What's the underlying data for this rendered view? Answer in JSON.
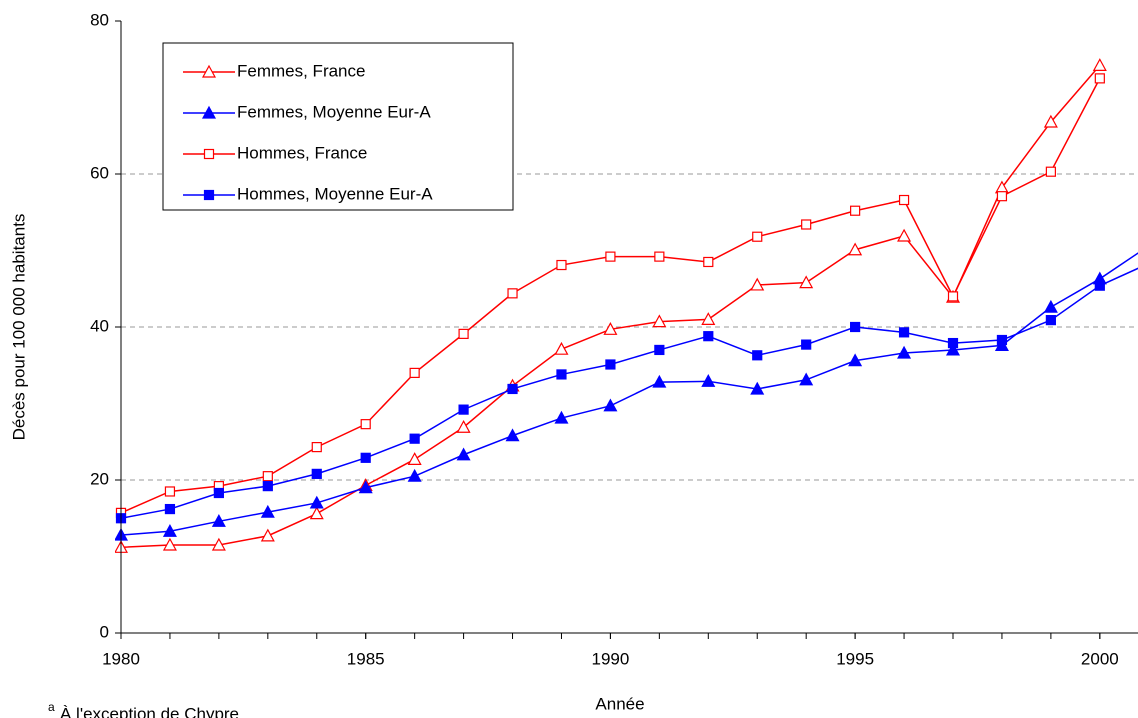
{
  "chart_data": {
    "type": "line",
    "x_label": "Année",
    "y_label": "Décès pour 100 000 habitants",
    "footnote_marker": "a",
    "footnote": "À l'exception de Chypre",
    "x": [
      1980,
      1981,
      1982,
      1983,
      1984,
      1985,
      1986,
      1987,
      1988,
      1989,
      1990,
      1991,
      1992,
      1993,
      1994,
      1995,
      1996,
      1997,
      1998,
      1999,
      2000,
      2001
    ],
    "xlim": [
      1980,
      2000.78
    ],
    "xticks": [
      1980,
      1985,
      1990,
      1995,
      2000
    ],
    "ylim": [
      0,
      80
    ],
    "yticks": [
      0,
      20,
      40,
      60,
      80
    ],
    "grid": true,
    "legend": "upper left",
    "series": [
      {
        "name": "Femmes, France",
        "color": "#ff0000",
        "marker": "triangle-open",
        "values": [
          11.2,
          11.5,
          11.5,
          12.7,
          15.6,
          19.3,
          22.7,
          26.9,
          32.3,
          37.1,
          39.7,
          40.7,
          41.0,
          45.5,
          45.8,
          50.1,
          51.9,
          43.9,
          58.2,
          66.8,
          74.2,
          null
        ]
      },
      {
        "name": "Femmes, Moyenne Eur-A",
        "color": "#0000ff",
        "marker": "triangle-filled",
        "values": [
          12.8,
          13.3,
          14.6,
          15.8,
          17.0,
          19.0,
          20.5,
          23.3,
          25.8,
          28.1,
          29.7,
          32.8,
          32.9,
          31.9,
          33.1,
          35.6,
          36.6,
          37.0,
          37.6,
          42.6,
          46.3,
          50.6
        ]
      },
      {
        "name": "Hommes, France",
        "color": "#ff0000",
        "marker": "square-open",
        "values": [
          15.7,
          18.5,
          19.2,
          20.5,
          24.3,
          27.3,
          34.0,
          39.1,
          44.4,
          48.1,
          49.2,
          49.2,
          48.5,
          51.8,
          53.4,
          55.2,
          56.6,
          44.0,
          57.1,
          60.3,
          72.5,
          null
        ]
      },
      {
        "name": "Hommes, Moyenne Eur-A",
        "color": "#0000ff",
        "marker": "square-filled",
        "values": [
          15.0,
          16.2,
          18.3,
          19.2,
          20.8,
          22.9,
          25.4,
          29.2,
          31.9,
          33.8,
          35.1,
          37.0,
          38.8,
          36.3,
          37.7,
          40.0,
          39.3,
          37.9,
          38.3,
          40.9,
          45.4,
          48.3
        ]
      }
    ]
  }
}
